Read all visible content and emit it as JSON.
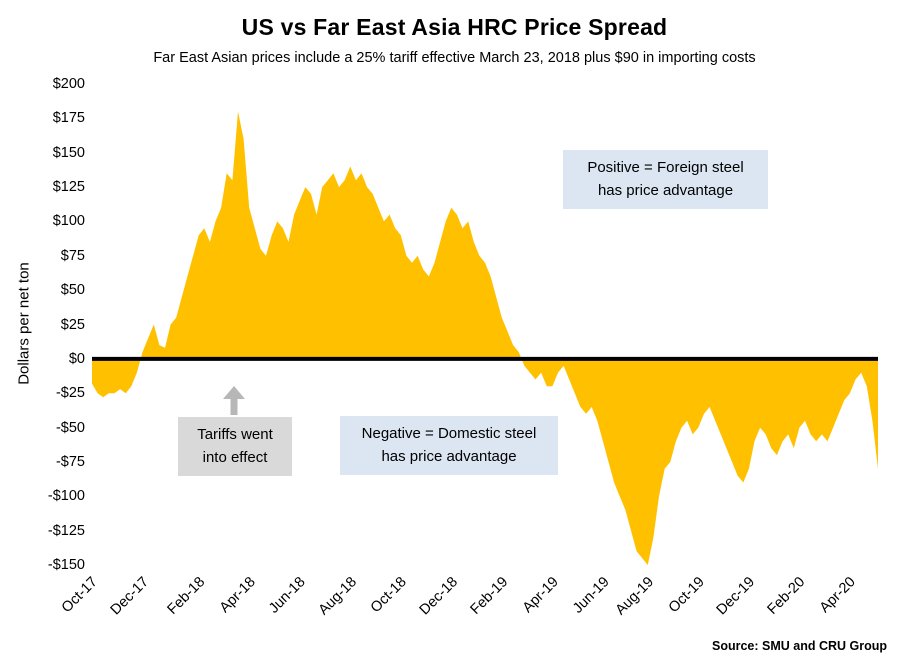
{
  "colors": {
    "area_gold": "#FFC000",
    "zero_line_black": "#000000",
    "note_blue_bg": "#dce6f2",
    "note_gray_bg": "#d9d9d9",
    "arrow_gray": "#b7b7b7"
  },
  "annotations": {
    "positive_box": {
      "line1": "Positive = Foreign steel",
      "line2": "has price advantage"
    },
    "negative_box": {
      "line1": "Negative = Domestic steel",
      "line2": "has price advantage"
    },
    "tariff_box": {
      "line1": "Tariffs went",
      "line2": "into effect"
    }
  },
  "source": "Source: SMU and CRU Group",
  "chart_data": {
    "type": "area",
    "title": "US vs Far East Asia HRC Price Spread",
    "subtitle": "Far East Asian prices include a 25% tariff effective March 23, 2018 plus $90 in importing costs",
    "ylabel": "Dollars per net ton",
    "ylim": [
      -150,
      200
    ],
    "ytick_step": 25,
    "grid": false,
    "legend": "none",
    "area_color": "#FFC000",
    "zero_line_color": "#000000",
    "y_tick_labels": [
      "$200",
      "$175",
      "$150",
      "$125",
      "$100",
      "$75",
      "$50",
      "$25",
      "$0",
      "-$25",
      "-$50",
      "-$75",
      "-$100",
      "-$125",
      "-$150"
    ],
    "x_tick_labels": [
      "Oct-17",
      "Dec-17",
      "Feb-18",
      "Apr-18",
      "Jun-18",
      "Aug-18",
      "Oct-18",
      "Dec-18",
      "Feb-19",
      "Apr-19",
      "Jun-19",
      "Aug-19",
      "Oct-19",
      "Dec-19",
      "Feb-20",
      "Apr-20"
    ],
    "x_tick_indices": [
      0,
      9,
      19,
      28,
      37,
      46,
      55,
      64,
      73,
      82,
      91,
      99,
      108,
      117,
      126,
      135
    ],
    "x_unit": "weekly observations, Oct-2017 through May-2020",
    "values": [
      -18,
      -25,
      -28,
      -25,
      -25,
      -22,
      -25,
      -20,
      -10,
      5,
      15,
      25,
      10,
      8,
      25,
      30,
      45,
      60,
      75,
      90,
      95,
      85,
      100,
      110,
      135,
      130,
      180,
      160,
      110,
      95,
      80,
      75,
      90,
      100,
      95,
      85,
      105,
      115,
      125,
      120,
      105,
      125,
      130,
      135,
      125,
      130,
      140,
      130,
      135,
      125,
      120,
      110,
      100,
      105,
      95,
      90,
      75,
      70,
      75,
      65,
      60,
      70,
      85,
      100,
      110,
      105,
      95,
      100,
      85,
      75,
      70,
      60,
      45,
      30,
      20,
      10,
      5,
      -5,
      -10,
      -15,
      -10,
      -20,
      -20,
      -10,
      -5,
      -15,
      -25,
      -35,
      -40,
      -35,
      -45,
      -60,
      -75,
      -90,
      -100,
      -110,
      -125,
      -140,
      -145,
      -150,
      -130,
      -100,
      -80,
      -75,
      -60,
      -50,
      -45,
      -55,
      -50,
      -40,
      -35,
      -45,
      -55,
      -65,
      -75,
      -85,
      -90,
      -80,
      -60,
      -50,
      -55,
      -65,
      -70,
      -60,
      -55,
      -65,
      -50,
      -45,
      -55,
      -60,
      -55,
      -60,
      -50,
      -40,
      -30,
      -25,
      -15,
      -10,
      -20,
      -45,
      -80
    ]
  }
}
